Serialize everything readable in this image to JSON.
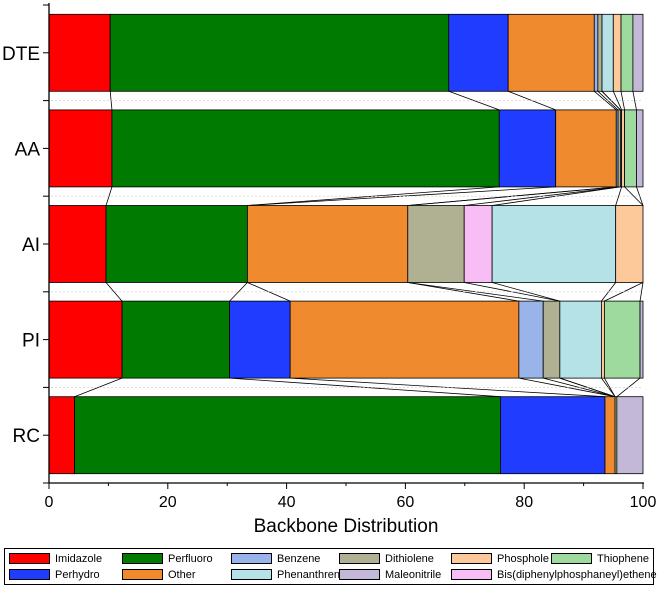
{
  "chart_data": {
    "type": "bar",
    "orientation": "horizontal",
    "stacked": true,
    "title": "",
    "xlabel": "Backbone Distribution",
    "ylabel": "",
    "xlim": [
      0,
      100
    ],
    "xticks": [
      0,
      20,
      40,
      60,
      80,
      100
    ],
    "categories": [
      "DTE",
      "AA",
      "AI",
      "PI",
      "RC"
    ],
    "series": [
      {
        "name": "Imidazole",
        "color": "#ff0000",
        "values": [
          10.3,
          10.6,
          9.6,
          12.3,
          4.3
        ]
      },
      {
        "name": "Perfluoro",
        "color": "#007a00",
        "values": [
          57.0,
          65.2,
          23.8,
          18.1,
          71.7
        ]
      },
      {
        "name": "Perhydro",
        "color": "#1f3cff",
        "values": [
          10.0,
          9.5,
          0.0,
          10.2,
          17.6
        ]
      },
      {
        "name": "Other",
        "color": "#ef8a2e",
        "values": [
          14.5,
          10.2,
          27.0,
          38.5,
          1.7
        ]
      },
      {
        "name": "Benzene",
        "color": "#99b4e8",
        "values": [
          0.6,
          0.3,
          0.0,
          4.1,
          0.0
        ]
      },
      {
        "name": "Phenanthrene",
        "color": "#b4e2e6",
        "values": [
          1.9,
          0.2,
          20.8,
          7.0,
          0.0
        ]
      },
      {
        "name": "Dithiolene",
        "color": "#b0b093",
        "values": [
          0.7,
          0.4,
          9.5,
          2.8,
          0.0
        ]
      },
      {
        "name": "Maleonitrile",
        "color": "#c3b8d8",
        "values": [
          1.7,
          1.1,
          0.0,
          0.5,
          4.4
        ]
      },
      {
        "name": "Phosphole",
        "color": "#fdc99b",
        "values": [
          1.3,
          0.5,
          4.6,
          0.5,
          0.0
        ]
      },
      {
        "name": "Bis(diphenylphosphaneyl)ethene",
        "color": "#f9bdf5",
        "values": [
          0.0,
          0.0,
          4.7,
          0.0,
          0.0
        ]
      },
      {
        "name": "Thiophene",
        "color": "#9ed99d",
        "values": [
          2.0,
          2.0,
          0.0,
          6.0,
          0.3
        ]
      }
    ],
    "stack_order": [
      "Imidazole",
      "Perfluoro",
      "Perhydro",
      "Other",
      "Benzene",
      "Dithiolene",
      "Bis(diphenylphosphaneyl)ethene",
      "Phenanthrene",
      "Phosphole",
      "Thiophene",
      "Maleonitrile"
    ],
    "legend_position": "bottom",
    "legend_order": [
      "Imidazole",
      "Perfluoro",
      "Benzene",
      "Dithiolene",
      "Phosphole",
      "Thiophene",
      "Perhydro",
      "Other",
      "Phenanthrene",
      "Maleonitrile",
      "Bis(diphenylphosphaneyl)ethene"
    ],
    "grid": false
  }
}
